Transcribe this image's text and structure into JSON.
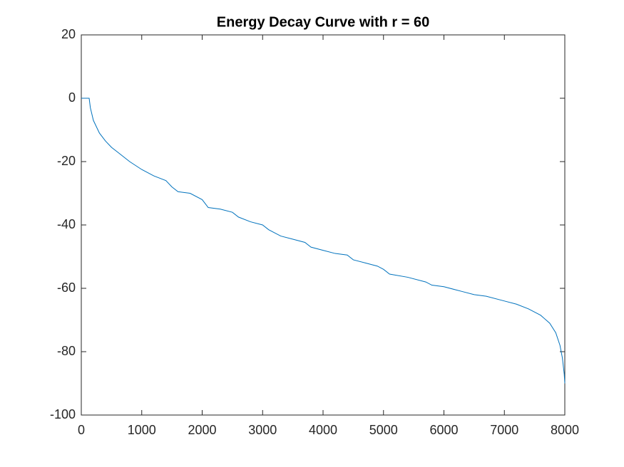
{
  "chart_data": {
    "type": "line",
    "title": "Energy Decay Curve with r = 60",
    "x": [
      0,
      130,
      150,
      200,
      300,
      400,
      500,
      600,
      800,
      1000,
      1200,
      1400,
      1500,
      1600,
      1800,
      2000,
      2100,
      2300,
      2500,
      2600,
      2800,
      3000,
      3100,
      3300,
      3500,
      3700,
      3800,
      4000,
      4200,
      4400,
      4500,
      4700,
      4900,
      5000,
      5100,
      5400,
      5700,
      5800,
      6000,
      6300,
      6500,
      6700,
      7000,
      7200,
      7400,
      7600,
      7750,
      7850,
      7920,
      7960,
      7990,
      8000
    ],
    "values": [
      0,
      0,
      -3,
      -7,
      -11,
      -13.5,
      -15.5,
      -17,
      -20,
      -22.5,
      -24.5,
      -26,
      -28,
      -29.5,
      -30,
      -32,
      -34.5,
      -35,
      -36,
      -37.5,
      -39,
      -40,
      -41.5,
      -43.5,
      -44.5,
      -45.5,
      -47,
      -48,
      -49,
      -49.5,
      -51,
      -52,
      -53,
      -54,
      -55.5,
      -56.5,
      -58,
      -59,
      -59.5,
      -61,
      -62,
      -62.5,
      -64,
      -65,
      -66.5,
      -68.5,
      -71,
      -74,
      -78,
      -82,
      -87,
      -90
    ],
    "color": "#0072bd",
    "xlim": [
      0,
      8000
    ],
    "xticks": [
      0,
      1000,
      2000,
      3000,
      4000,
      5000,
      6000,
      7000,
      8000
    ],
    "ylim": [
      -100,
      20
    ],
    "yticks": [
      -100,
      -80,
      -60,
      -40,
      -20,
      0,
      20
    ],
    "grid": false
  }
}
